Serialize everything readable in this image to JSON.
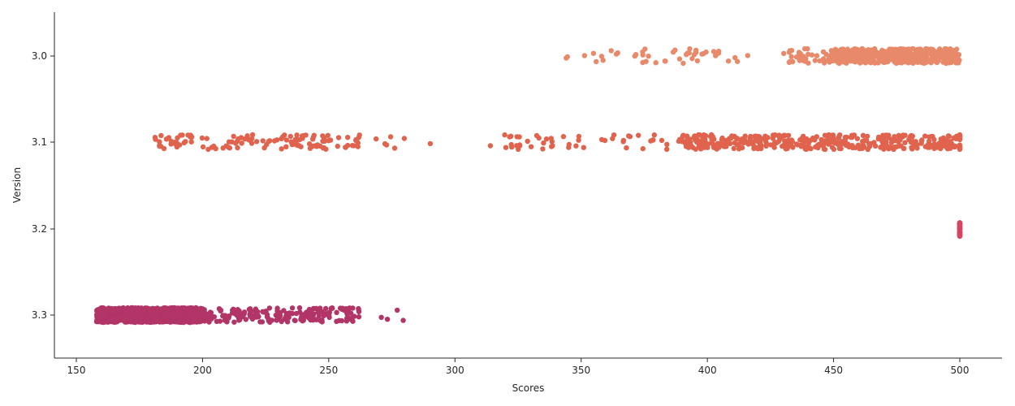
{
  "chart_data": {
    "type": "scatter",
    "subtype": "strip",
    "title": "",
    "xlabel": "Scores",
    "ylabel": "Version",
    "xlim": [
      142,
      1215
    ],
    "x_ticks": [
      150,
      200,
      250,
      300,
      350,
      400,
      450,
      500
    ],
    "x_tick_labels": [
      "150",
      "200",
      "250",
      "300",
      "350",
      "400",
      "450",
      "500"
    ],
    "categories": [
      "3.0",
      "3.1",
      "3.2",
      "3.3"
    ],
    "grid": false,
    "legend": "none",
    "series": [
      {
        "category": "3.0",
        "color": "#e8896a",
        "clusters": [
          {
            "min": 343,
            "max": 418,
            "count": 45
          },
          {
            "min": 430,
            "max": 458,
            "count": 50
          },
          {
            "min": 450,
            "max": 500,
            "count": 520
          }
        ]
      },
      {
        "category": "3.1",
        "color": "#e0634e",
        "clusters": [
          {
            "min": 180,
            "max": 262,
            "count": 120
          },
          {
            "min": 262,
            "max": 300,
            "count": 8
          },
          {
            "min": 310,
            "max": 400,
            "count": 60
          },
          {
            "min": 390,
            "max": 500,
            "count": 360
          },
          {
            "min": 500,
            "max": 500,
            "count": 25
          }
        ]
      },
      {
        "category": "3.2",
        "color": "#d64560",
        "clusters": [
          {
            "min": 500,
            "max": 500,
            "count": 60
          }
        ]
      },
      {
        "category": "3.3",
        "color": "#b23567",
        "clusters": [
          {
            "min": 158,
            "max": 200,
            "count": 1100
          },
          {
            "min": 195,
            "max": 262,
            "count": 200
          },
          {
            "min": 262,
            "max": 287,
            "count": 4
          }
        ]
      }
    ]
  }
}
